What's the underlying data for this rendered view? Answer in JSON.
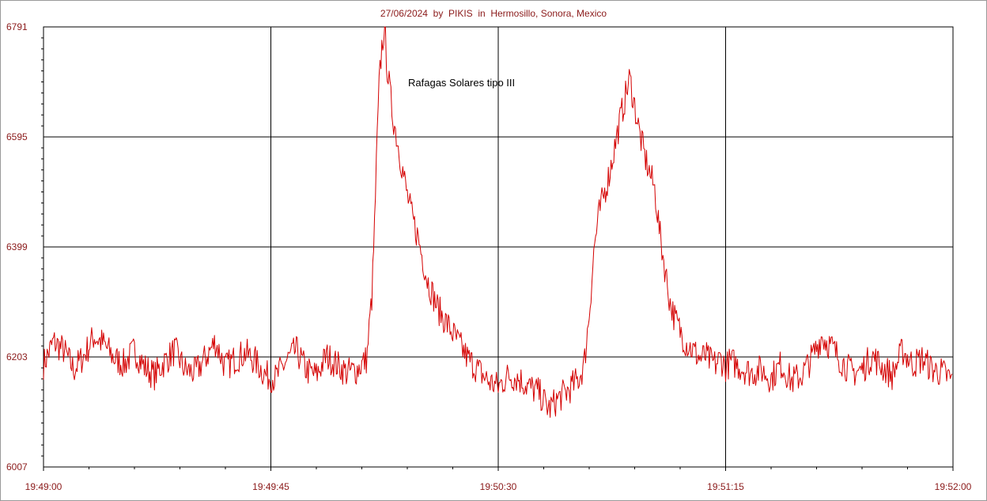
{
  "chart_data": {
    "type": "line",
    "title": "27/06/2024  by  PIKIS  in  Hermosillo, Sonora, Mexico",
    "annotation": "Rafagas Solares tipo III",
    "xlabel": "",
    "ylabel": "",
    "x_range_seconds": [
      0,
      180
    ],
    "x_start_time": "19:49:00",
    "ylim": [
      6007,
      6791
    ],
    "y_ticks": [
      "6791",
      "6595",
      "6399",
      "6203",
      "6007"
    ],
    "x_ticks": [
      "19:49:00",
      "19:49:45",
      "19:50:30",
      "19:51:15",
      "19:52:00"
    ],
    "grid": true,
    "line_color": "#d40000",
    "series": [
      {
        "x": [
          0,
          2,
          4,
          6,
          8,
          10,
          12,
          14,
          16,
          18,
          20,
          22,
          24,
          26,
          28,
          30,
          32,
          34,
          36,
          38,
          40,
          42,
          44,
          46,
          48,
          50,
          52,
          54,
          56,
          58,
          60,
          62,
          64,
          64.5,
          65,
          65.5,
          66,
          66.5,
          67,
          67.5,
          68,
          69,
          70,
          71,
          72,
          73,
          74,
          75,
          76,
          78,
          80,
          82,
          84,
          86,
          88,
          90,
          92,
          94,
          96,
          98,
          100,
          102,
          104,
          106,
          107,
          108,
          109,
          110,
          112,
          114,
          116,
          117,
          118,
          119,
          120,
          121,
          122,
          123,
          124,
          125,
          126,
          127,
          128,
          129,
          130,
          131,
          132,
          133,
          134,
          135,
          136,
          138,
          140,
          142,
          144,
          146,
          148,
          150,
          152,
          154,
          156,
          158,
          160,
          162,
          164,
          166,
          168,
          170,
          172,
          174,
          176,
          178,
          180
        ],
        "values": [
          6190,
          6230,
          6215,
          6180,
          6205,
          6240,
          6225,
          6200,
          6190,
          6215,
          6185,
          6170,
          6195,
          6215,
          6180,
          6175,
          6200,
          6230,
          6185,
          6200,
          6210,
          6195,
          6170,
          6165,
          6195,
          6215,
          6180,
          6170,
          6205,
          6190,
          6175,
          6180,
          6200,
          6260,
          6310,
          6430,
          6580,
          6700,
          6760,
          6791,
          6720,
          6640,
          6590,
          6540,
          6490,
          6450,
          6420,
          6380,
          6340,
          6290,
          6260,
          6230,
          6200,
          6180,
          6160,
          6150,
          6170,
          6165,
          6150,
          6140,
          6110,
          6130,
          6145,
          6165,
          6190,
          6280,
          6400,
          6460,
          6530,
          6620,
          6700,
          6650,
          6600,
          6560,
          6530,
          6500,
          6420,
          6360,
          6300,
          6270,
          6250,
          6230,
          6220,
          6210,
          6200,
          6205,
          6195,
          6190,
          6200,
          6185,
          6195,
          6185,
          6175,
          6180,
          6165,
          6190,
          6160,
          6170,
          6200,
          6240,
          6220,
          6195,
          6175,
          6180,
          6205,
          6185,
          6170,
          6215,
          6190,
          6200,
          6180,
          6175,
          6160
        ]
      }
    ]
  }
}
